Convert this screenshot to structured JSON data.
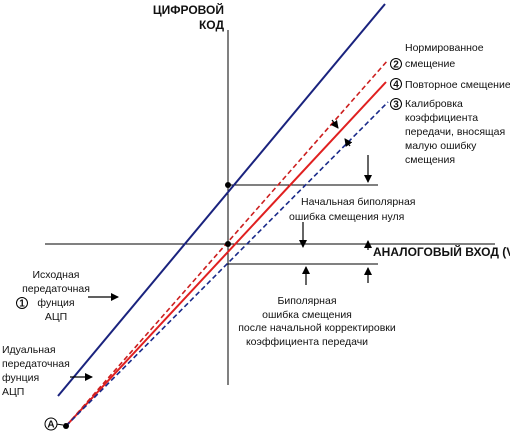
{
  "axes": {
    "y_label_line1": "ЦИФРОВОЙ",
    "y_label_line2": "КОД",
    "x_label": "АНАЛОГОВЫЙ ВХОД (V)"
  },
  "lines": {
    "line2": {
      "number": "2",
      "text_1": "Нормированное",
      "text_2": "смещение",
      "color": "#cc1f1f",
      "style": "dashed"
    },
    "line4": {
      "number": "4",
      "text_1": "Повторное смещение",
      "color": "#e02020",
      "style": "solid"
    },
    "line3": {
      "number": "3",
      "text_1": "Калибровка",
      "text_2": "коэффициента",
      "text_3": "передачи, вносящая",
      "text_4": "малую ошибку",
      "text_5": "смещения",
      "color": "#1a2a8a",
      "style": "dashed"
    },
    "line1": {
      "number": "1",
      "text_1": "Исходная",
      "text_2": "передаточная",
      "text_3": "фунция",
      "text_4": "АЦП",
      "color": "#1a237e",
      "style": "solid"
    },
    "ideal": {
      "text_1": "Идуальная",
      "text_2": "передаточная",
      "text_3": "фунция",
      "text_4": "АЦП",
      "color": "#e02020",
      "style": "solid"
    }
  },
  "annotations": {
    "initial_error_1": "Начальная биполярная",
    "initial_error_2": "ошибка смещения нуля",
    "bipolar_1": "Биполярная",
    "bipolar_2": "ошибка смещения",
    "bipolar_3": "после начальной корректировки",
    "bipolar_4": "коэффициента передачи"
  },
  "origin_point": {
    "label": "A"
  }
}
